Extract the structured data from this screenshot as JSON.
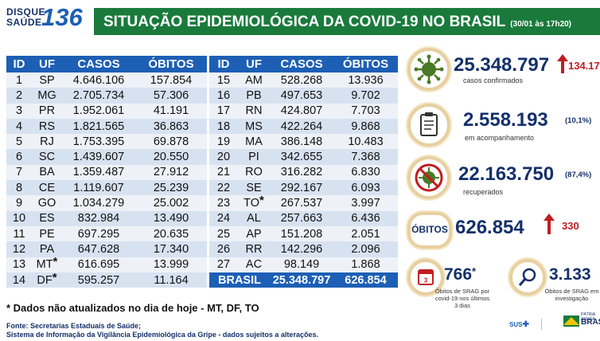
{
  "logo": {
    "line1": "DISQUE",
    "line2": "SAÚDE",
    "number": "136"
  },
  "header": {
    "title": "SITUAÇÃO EPIDEMIOLÓGICA DA COVID-19 NO BRASIL",
    "date": "(30/01 às 17h20)"
  },
  "table": {
    "columns": [
      "ID",
      "UF",
      "CASOS",
      "ÓBITOS"
    ],
    "left_rows": [
      {
        "id": "1",
        "uf": "SP",
        "casos": "4.646.106",
        "obitos": "157.854",
        "star": ""
      },
      {
        "id": "2",
        "uf": "MG",
        "casos": "2.705.734",
        "obitos": "57.306",
        "star": ""
      },
      {
        "id": "3",
        "uf": "PR",
        "casos": "1.952.061",
        "obitos": "41.191",
        "star": ""
      },
      {
        "id": "4",
        "uf": "RS",
        "casos": "1.821.565",
        "obitos": "36.863",
        "star": ""
      },
      {
        "id": "5",
        "uf": "RJ",
        "casos": "1.753.395",
        "obitos": "69.878",
        "star": ""
      },
      {
        "id": "6",
        "uf": "SC",
        "casos": "1.439.607",
        "obitos": "20.550",
        "star": ""
      },
      {
        "id": "7",
        "uf": "BA",
        "casos": "1.359.487",
        "obitos": "27.912",
        "star": ""
      },
      {
        "id": "8",
        "uf": "CE",
        "casos": "1.119.607",
        "obitos": "25.239",
        "star": ""
      },
      {
        "id": "9",
        "uf": "GO",
        "casos": "1.034.279",
        "obitos": "25.002",
        "star": ""
      },
      {
        "id": "10",
        "uf": "ES",
        "casos": "832.984",
        "obitos": "13.490",
        "star": ""
      },
      {
        "id": "11",
        "uf": "PE",
        "casos": "697.295",
        "obitos": "20.635",
        "star": ""
      },
      {
        "id": "12",
        "uf": "PA",
        "casos": "647.628",
        "obitos": "17.340",
        "star": ""
      },
      {
        "id": "13",
        "uf": "MT",
        "casos": "616.695",
        "obitos": "13.999",
        "star": "*"
      },
      {
        "id": "14",
        "uf": "DF",
        "casos": "595.257",
        "obitos": "11.164",
        "star": "*"
      }
    ],
    "right_rows": [
      {
        "id": "15",
        "uf": "AM",
        "casos": "528.268",
        "obitos": "13.936",
        "star": ""
      },
      {
        "id": "16",
        "uf": "PB",
        "casos": "497.653",
        "obitos": "9.702",
        "star": ""
      },
      {
        "id": "17",
        "uf": "RN",
        "casos": "424.807",
        "obitos": "7.703",
        "star": ""
      },
      {
        "id": "18",
        "uf": "MS",
        "casos": "422.264",
        "obitos": "9.868",
        "star": ""
      },
      {
        "id": "19",
        "uf": "MA",
        "casos": "386.148",
        "obitos": "10.483",
        "star": ""
      },
      {
        "id": "20",
        "uf": "PI",
        "casos": "342.655",
        "obitos": "7.368",
        "star": ""
      },
      {
        "id": "21",
        "uf": "RO",
        "casos": "316.282",
        "obitos": "6.830",
        "star": ""
      },
      {
        "id": "22",
        "uf": "SE",
        "casos": "292.167",
        "obitos": "6.093",
        "star": ""
      },
      {
        "id": "23",
        "uf": "TO",
        "casos": "267.537",
        "obitos": "3.997",
        "star": "*"
      },
      {
        "id": "24",
        "uf": "AL",
        "casos": "257.663",
        "obitos": "6.436",
        "star": ""
      },
      {
        "id": "25",
        "uf": "AP",
        "casos": "151.208",
        "obitos": "2.051",
        "star": ""
      },
      {
        "id": "26",
        "uf": "RR",
        "casos": "142.296",
        "obitos": "2.096",
        "star": ""
      },
      {
        "id": "27",
        "uf": "AC",
        "casos": "98.149",
        "obitos": "1.868",
        "star": ""
      }
    ],
    "total": {
      "label": "BRASIL",
      "casos": "25.348.797",
      "obitos": "626.854"
    }
  },
  "note": "* Dados não atualizados no dia de hoje - MT, DF, TO",
  "source": {
    "line1": "Fonte: Secretarias Estaduais de Saúde;",
    "line2": "Sistema de Informação da Vigilância Epidemiológica da Gripe - dados sujeitos a alterações."
  },
  "stats": {
    "confirmed": {
      "value": "25.348.797",
      "increase": "134.17",
      "label": "casos confirmados"
    },
    "monitoring": {
      "value": "2.558.193",
      "pct": "(10,1%)",
      "label": "em acompanhamento"
    },
    "recovered": {
      "value": "22.163.750",
      "pct": "(87,4%)",
      "label": "recuperados"
    },
    "deaths": {
      "pill": "ÓBITOS",
      "value": "626.854",
      "increase": "330"
    },
    "srag_3days": {
      "value": "766",
      "star": "*",
      "label": "Óbitos de SRAG por covid-19 nos últimos 3 dias",
      "calendar_day": "3"
    },
    "srag_investigation": {
      "value": "3.133",
      "label": "Óbitos de SRAG em investigação"
    }
  },
  "footer": {
    "sus": "SUS",
    "gov": "BRASIL",
    "gov_small": "PÁTRIA AMADA"
  },
  "colors": {
    "green": "#1a7a3c",
    "blue": "#1d5fb4",
    "navy": "#14306a",
    "red": "#c01d20"
  }
}
